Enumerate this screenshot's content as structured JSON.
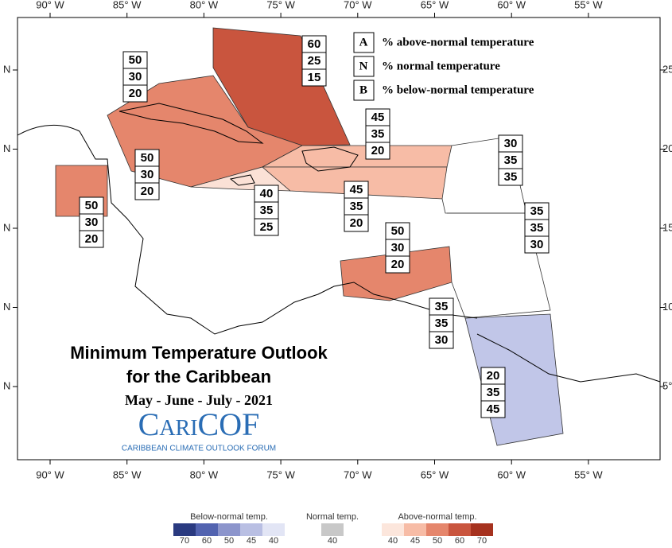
{
  "lon_labels": [
    "90° W",
    "85° W",
    "80° W",
    "75° W",
    "70° W",
    "65° W",
    "60° W",
    "55° W"
  ],
  "lat_labels_left": [
    "N",
    "N",
    "N",
    "N",
    "N"
  ],
  "lat_labels_right": [
    "25",
    "20°",
    "15",
    "10°",
    "5°"
  ],
  "key": [
    {
      "letter": "A",
      "text": "% above-normal temperature"
    },
    {
      "letter": "N",
      "text": "% normal temperature"
    },
    {
      "letter": "B",
      "text": "% below-normal temperature"
    }
  ],
  "regions": [
    {
      "probabilities": [
        60,
        25,
        15
      ]
    },
    {
      "probabilities": [
        50,
        30,
        20
      ]
    },
    {
      "probabilities": [
        45,
        35,
        20
      ]
    },
    {
      "probabilities": [
        30,
        35,
        35
      ]
    },
    {
      "probabilities": [
        50,
        30,
        20
      ]
    },
    {
      "probabilities": [
        40,
        35,
        25
      ]
    },
    {
      "probabilities": [
        45,
        35,
        20
      ]
    },
    {
      "probabilities": [
        50,
        30,
        20
      ]
    },
    {
      "probabilities": [
        35,
        35,
        30
      ]
    },
    {
      "probabilities": [
        50,
        30,
        20
      ]
    },
    {
      "probabilities": [
        35,
        35,
        30
      ]
    },
    {
      "probabilities": [
        20,
        35,
        45
      ]
    }
  ],
  "title": "Minimum Temperature Outlook",
  "title2": "for the Caribbean",
  "period": "May - June - July - 2021",
  "logo": "CariCOF",
  "logo_sub": "CARIBBEAN CLIMATE OUTLOOK FORUM",
  "colorbar": {
    "below_label": "Below-normal temp.",
    "below_ticks": [
      70,
      60,
      50,
      45,
      40
    ],
    "normal_label": "Normal temp.",
    "normal_ticks": [
      40
    ],
    "above_label": "Above-normal temp.",
    "above_ticks": [
      40,
      45,
      50,
      60,
      70
    ]
  }
}
